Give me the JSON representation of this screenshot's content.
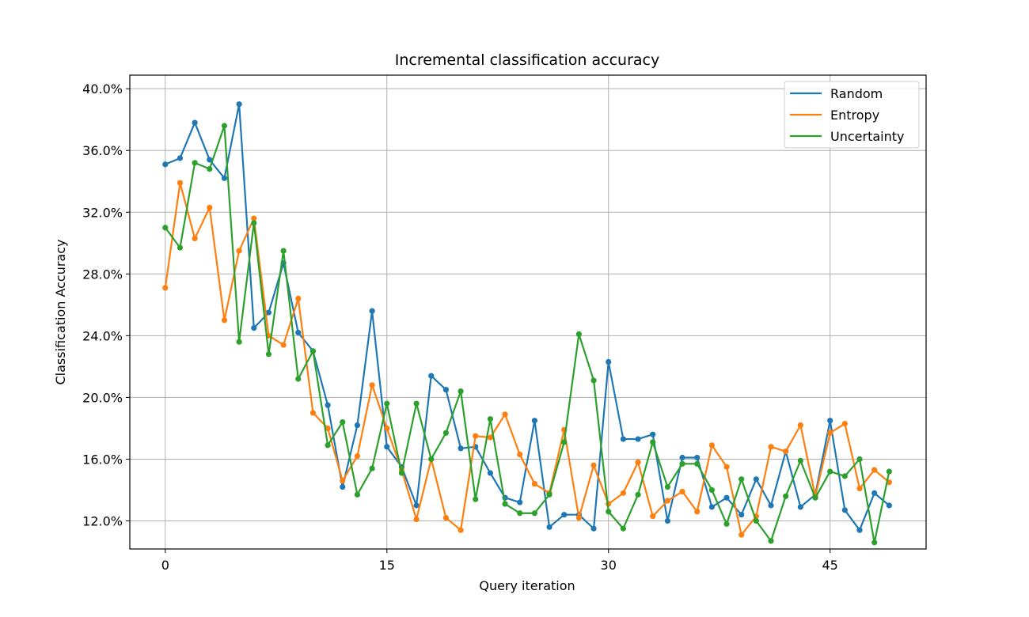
{
  "chart_data": {
    "type": "line",
    "title": "Incremental classification accuracy",
    "xlabel": "Query iteration",
    "ylabel": "Classification Accuracy",
    "xlim": [
      -2.4,
      51.5
    ],
    "ylim": [
      0.1018,
      0.4088
    ],
    "xticks": [
      0,
      15,
      30,
      45
    ],
    "yticks": [
      0.12,
      0.16,
      0.2,
      0.24,
      0.28,
      0.32,
      0.36,
      0.4
    ],
    "ytick_labels": [
      "12.0%",
      "16.0%",
      "20.0%",
      "24.0%",
      "28.0%",
      "32.0%",
      "36.0%",
      "40.0%"
    ],
    "grid": true,
    "legend_position": "upper right",
    "x": [
      0,
      1,
      2,
      3,
      4,
      5,
      6,
      7,
      8,
      9,
      10,
      11,
      12,
      13,
      14,
      15,
      16,
      17,
      18,
      19,
      20,
      21,
      22,
      23,
      24,
      25,
      26,
      27,
      28,
      29,
      30,
      31,
      32,
      33,
      34,
      35,
      36,
      37,
      38,
      39,
      40,
      41,
      42,
      43,
      44,
      45,
      46,
      47,
      48,
      49
    ],
    "series": [
      {
        "name": "Random",
        "color": "#1f77b4",
        "values": [
          0.351,
          0.355,
          0.378,
          0.354,
          0.342,
          0.39,
          0.245,
          0.255,
          0.287,
          0.242,
          0.23,
          0.195,
          0.142,
          0.182,
          0.256,
          0.168,
          0.155,
          0.13,
          0.214,
          0.205,
          0.167,
          0.168,
          0.151,
          0.135,
          0.132,
          0.185,
          0.116,
          0.124,
          0.124,
          0.115,
          0.223,
          0.173,
          0.173,
          0.176,
          0.12,
          0.161,
          0.161,
          0.129,
          0.135,
          0.124,
          0.147,
          0.13,
          0.165,
          0.129,
          0.137,
          0.185,
          0.127,
          0.114,
          0.138,
          0.13
        ]
      },
      {
        "name": "Entropy",
        "color": "#ff7f0e",
        "values": [
          0.271,
          0.339,
          0.303,
          0.323,
          0.25,
          0.295,
          0.316,
          0.24,
          0.234,
          0.264,
          0.19,
          0.18,
          0.146,
          0.162,
          0.208,
          0.18,
          0.153,
          0.121,
          0.16,
          0.122,
          0.114,
          0.175,
          0.174,
          0.189,
          0.163,
          0.144,
          0.138,
          0.179,
          0.122,
          0.156,
          0.131,
          0.138,
          0.158,
          0.123,
          0.133,
          0.139,
          0.126,
          0.169,
          0.155,
          0.111,
          0.123,
          0.168,
          0.165,
          0.182,
          0.136,
          0.177,
          0.183,
          0.141,
          0.153,
          0.145
        ]
      },
      {
        "name": "Uncertainty",
        "color": "#2ca02c",
        "values": [
          0.31,
          0.297,
          0.352,
          0.348,
          0.376,
          0.236,
          0.313,
          0.228,
          0.295,
          0.212,
          0.23,
          0.169,
          0.184,
          0.137,
          0.154,
          0.196,
          0.151,
          0.196,
          0.16,
          0.177,
          0.204,
          0.134,
          0.186,
          0.131,
          0.125,
          0.125,
          0.137,
          0.171,
          0.241,
          0.211,
          0.126,
          0.115,
          0.137,
          0.171,
          0.142,
          0.157,
          0.157,
          0.14,
          0.118,
          0.147,
          0.12,
          0.107,
          0.136,
          0.159,
          0.135,
          0.152,
          0.149,
          0.16,
          0.106,
          0.152
        ]
      }
    ]
  }
}
